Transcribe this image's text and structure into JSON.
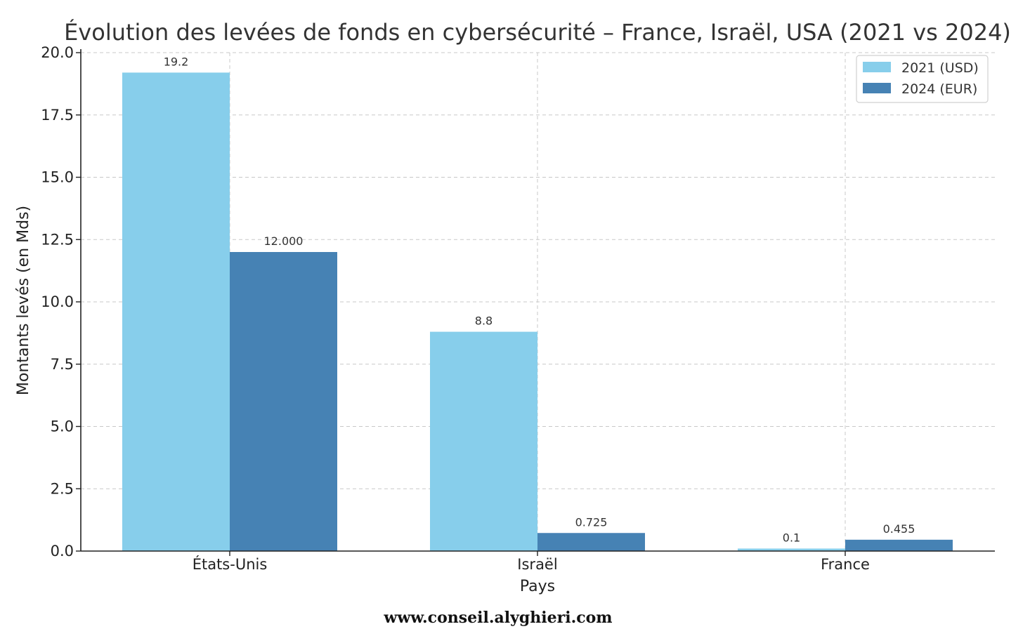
{
  "chart_data": {
    "type": "bar",
    "title": "Évolution des levées de fonds en cybersécurité – France, Israël, USA (2021 vs 2024)",
    "xlabel": "Pays",
    "ylabel": "Montants levés (en Mds)",
    "categories": [
      "États-Unis",
      "Israël",
      "France"
    ],
    "series": [
      {
        "name": "2021 (USD)",
        "values": [
          19.2,
          8.8,
          0.1
        ],
        "labels": [
          "19.2",
          "8.8",
          "0.1"
        ],
        "color": "#87ceeb"
      },
      {
        "name": "2024 (EUR)",
        "values": [
          12.0,
          0.725,
          0.455
        ],
        "labels": [
          "12.000",
          "0.725",
          "0.455"
        ],
        "color": "#4682b4"
      }
    ],
    "ylim": [
      0,
      20
    ],
    "yticks": [
      "0.0",
      "2.5",
      "5.0",
      "7.5",
      "10.0",
      "12.5",
      "15.0",
      "17.5",
      "20.0"
    ],
    "grid": true,
    "legend_position": "top-right"
  },
  "watermark": "www.conseil.alyghieri.com"
}
